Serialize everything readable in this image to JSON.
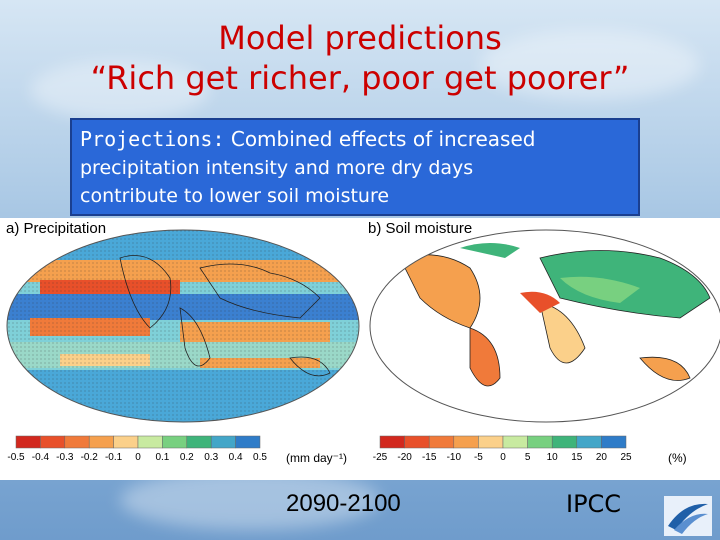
{
  "title": {
    "line1": "Model predictions",
    "line2": "“Rich get richer, poor get poorer”"
  },
  "projections": {
    "lead": "Projections:",
    "line1_rest": " Combined effects of increased",
    "line2": "precipitation intensity and more dry days",
    "line3": "contribute to lower soil moisture"
  },
  "panels": [
    {
      "label": "a) Precipitation",
      "unit": "(mm day⁻¹)",
      "ticks": [
        "-0.5",
        "-0.4",
        "-0.3",
        "-0.2",
        "-0.1",
        "0",
        "0.1",
        "0.2",
        "0.3",
        "0.4",
        "0.5"
      ],
      "colors": [
        "#d2281e",
        "#e8502a",
        "#f07a3a",
        "#f5a04e",
        "#fbd08a",
        "#c8eaa0",
        "#78d080",
        "#3fb47a",
        "#43a6c8",
        "#2f7cc8"
      ]
    },
    {
      "label": "b) Soil moisture",
      "unit": "(%)",
      "ticks": [
        "-25",
        "-20",
        "-15",
        "-10",
        "-5",
        "0",
        "5",
        "10",
        "15",
        "20",
        "25"
      ],
      "colors": [
        "#d2281e",
        "#e8502a",
        "#f07a3a",
        "#f5a04e",
        "#fbd08a",
        "#c8eaa0",
        "#78d080",
        "#3fb47a",
        "#43a6c8",
        "#2f7cc8"
      ]
    }
  ],
  "footer": {
    "period": "2090-2100",
    "source": "IPCC"
  },
  "colors": {
    "title": "#cc0000",
    "panel_bg": "#2a68d8",
    "ocean_bg": "#ffffff"
  },
  "icons": {
    "logo": "ipcc-logo-icon"
  }
}
